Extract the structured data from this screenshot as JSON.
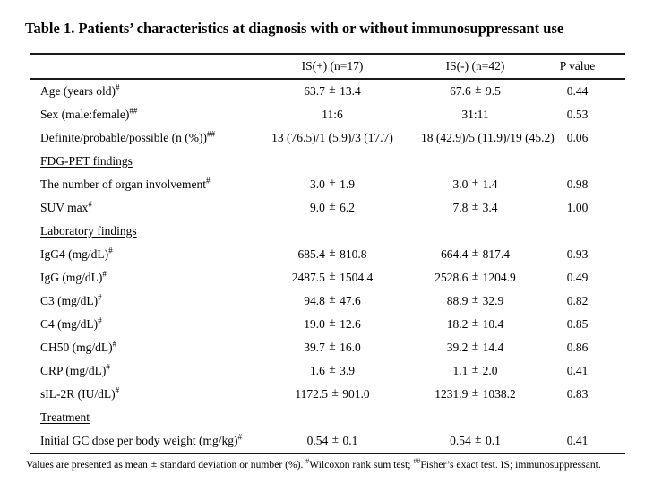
{
  "title": "Table 1. Patients’ characteristics at diagnosis with or without immunosuppressant use",
  "table": {
    "columns": [
      "IS(+) (n=17)",
      "IS(-) (n=42)",
      "P value"
    ],
    "rows": [
      {
        "type": "data",
        "label": "Age (years old)",
        "sup": "#",
        "is_pos": "63.7 ± 13.4",
        "is_neg": "67.6 ± 9.5",
        "p": "0.44"
      },
      {
        "type": "data",
        "label": "Sex (male:female)",
        "sup": "##",
        "is_pos": "11:6",
        "is_neg": "31:11",
        "p": "0.53"
      },
      {
        "type": "data",
        "label": "Definite/probable/possible (n (%))",
        "sup": "##",
        "is_pos": "13 (76.5)/1 (5.9)/3 (17.7)",
        "is_neg": "18 (42.9)/5 (11.9)/19 (45.2)",
        "p": "0.06"
      },
      {
        "type": "section",
        "label": "FDG-PET findings"
      },
      {
        "type": "data",
        "label": "The number of organ involvement",
        "sup": "#",
        "is_pos": "3.0 ± 1.9",
        "is_neg": "3.0 ± 1.4",
        "p": "0.98"
      },
      {
        "type": "data",
        "label": "SUV max",
        "sup": "#",
        "is_pos": "9.0 ± 6.2",
        "is_neg": "7.8 ± 3.4",
        "p": "1.00"
      },
      {
        "type": "section",
        "label": "Laboratory findings"
      },
      {
        "type": "data",
        "label": "IgG4 (mg/dL)",
        "sup": "#",
        "is_pos": "685.4 ± 810.8",
        "is_neg": "664.4 ± 817.4",
        "p": "0.93"
      },
      {
        "type": "data",
        "label": "IgG (mg/dL)",
        "sup": "#",
        "is_pos": "2487.5 ± 1504.4",
        "is_neg": "2528.6 ± 1204.9",
        "p": "0.49"
      },
      {
        "type": "data",
        "label": "C3 (mg/dL)",
        "sup": "#",
        "is_pos": "94.8 ± 47.6",
        "is_neg": "88.9 ± 32.9",
        "p": "0.82"
      },
      {
        "type": "data",
        "label": "C4 (mg/dL)",
        "sup": "#",
        "is_pos": "19.0 ± 12.6",
        "is_neg": "18.2 ± 10.4",
        "p": "0.85"
      },
      {
        "type": "data",
        "label": "CH50 (mg/dL)",
        "sup": "#",
        "is_pos": "39.7 ± 16.0",
        "is_neg": "39.2 ± 14.4",
        "p": "0.86"
      },
      {
        "type": "data",
        "label": "CRP (mg/dL)",
        "sup": "#",
        "is_pos": "1.6 ± 3.9",
        "is_neg": "1.1 ± 2.0",
        "p": "0.41"
      },
      {
        "type": "data",
        "label": "sIL-2R (IU/dL)",
        "sup": "#",
        "is_pos": "1172.5 ± 901.0",
        "is_neg": "1231.9 ± 1038.2",
        "p": "0.83"
      },
      {
        "type": "section",
        "label": "Treatment"
      },
      {
        "type": "data",
        "label": "Initial GC dose per body weight (mg/kg)",
        "sup": "#",
        "is_pos": "0.54 ± 0.1",
        "is_neg": "0.54 ± 0.1",
        "p": "0.41"
      }
    ],
    "footnote_parts": [
      {
        "text": "Values are presented as mean"
      },
      {
        "pm": "±"
      },
      {
        "text": "standard deviation or number (%). "
      },
      {
        "sup": "#"
      },
      {
        "text": "Wilcoxon rank sum test; "
      },
      {
        "sup": "##"
      },
      {
        "text": "Fisher’s exact test. IS; immunosuppressant."
      }
    ]
  }
}
